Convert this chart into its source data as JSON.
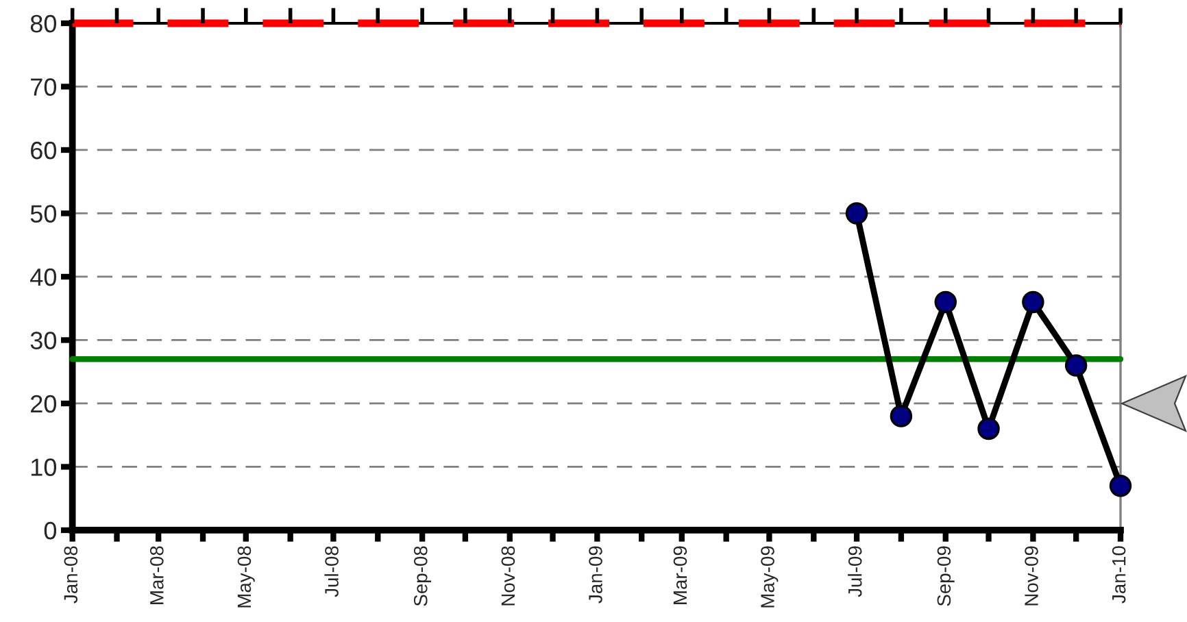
{
  "chart_data": {
    "type": "line",
    "x": [
      "2009-07",
      "2009-08",
      "2009-09",
      "2009-10",
      "2009-11",
      "2009-12",
      "2010-01"
    ],
    "series": [
      {
        "color": "#000000",
        "colors": [
          "#000080",
          "#000080",
          "#000080",
          "#000080",
          "#000080",
          "#000080",
          "#000080"
        ],
        "values": [
          50,
          18,
          36,
          16,
          36,
          26,
          7
        ]
      }
    ],
    "xlim": [
      "2008-01",
      "2010-01"
    ],
    "xticks": [
      {
        "value": "2008-01",
        "label": "Jan-08"
      },
      {
        "value": "2008-02",
        "label": null
      },
      {
        "value": "2008-03",
        "label": "Mar-08"
      },
      {
        "value": "2008-04",
        "label": null
      },
      {
        "value": "2008-05",
        "label": "May-08"
      },
      {
        "value": "2008-06",
        "label": null
      },
      {
        "value": "2008-07",
        "label": "Jul-08"
      },
      {
        "value": "2008-08",
        "label": null
      },
      {
        "value": "2008-09",
        "label": "Sep-08"
      },
      {
        "value": "2008-10",
        "label": null
      },
      {
        "value": "2008-11",
        "label": "Nov-08"
      },
      {
        "value": "2008-12",
        "label": null
      },
      {
        "value": "2009-01",
        "label": "Jan-09"
      },
      {
        "value": "2009-02",
        "label": null
      },
      {
        "value": "2009-03",
        "label": "Mar-09"
      },
      {
        "value": "2009-04",
        "label": null
      },
      {
        "value": "2009-05",
        "label": "May-09"
      },
      {
        "value": "2009-06",
        "label": null
      },
      {
        "value": "2009-07",
        "label": "Jul-09"
      },
      {
        "value": "2009-08",
        "label": null
      },
      {
        "value": "2009-09",
        "label": "Sep-09"
      },
      {
        "value": "2009-10",
        "label": null
      },
      {
        "value": "2009-11",
        "label": "Nov-09"
      },
      {
        "value": "2009-12",
        "label": null
      },
      {
        "value": "2010-01",
        "label": "Jan-10"
      }
    ],
    "ylim": [
      0,
      80
    ],
    "yticks": [
      0,
      10,
      20,
      30,
      40,
      50,
      60,
      70,
      80
    ],
    "grid": "y",
    "marker": "circle",
    "line_style": "solid",
    "ref_lines": [
      {
        "axis": "y",
        "value": 80,
        "color": "#ff0000",
        "line_style": "dashed"
      },
      {
        "axis": "y",
        "value": 27,
        "color": "#008000",
        "line_style": "solid"
      }
    ]
  }
}
